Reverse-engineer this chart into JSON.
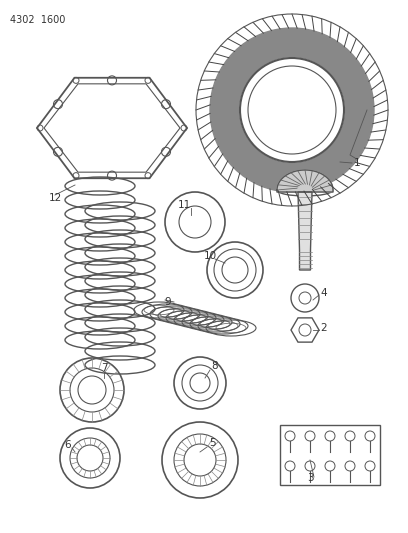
{
  "title": "4302  1600",
  "background_color": "#ffffff",
  "line_color": "#555555",
  "text_color": "#333333",
  "figsize": [
    4.08,
    5.33
  ],
  "dpi": 100
}
